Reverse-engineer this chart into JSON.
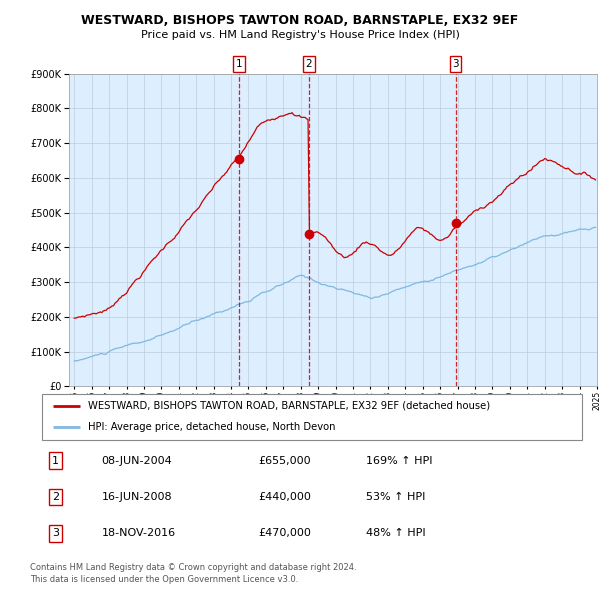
{
  "title": "WESTWARD, BISHOPS TAWTON ROAD, BARNSTAPLE, EX32 9EF",
  "subtitle": "Price paid vs. HM Land Registry's House Price Index (HPI)",
  "legend_line1": "WESTWARD, BISHOPS TAWTON ROAD, BARNSTAPLE, EX32 9EF (detached house)",
  "legend_line2": "HPI: Average price, detached house, North Devon",
  "transactions": [
    {
      "num": 1,
      "date": "08-JUN-2004",
      "price": 655000,
      "pct": "169%",
      "dir": "↑"
    },
    {
      "num": 2,
      "date": "16-JUN-2008",
      "price": 440000,
      "pct": "53%",
      "dir": "↑"
    },
    {
      "num": 3,
      "date": "18-NOV-2016",
      "price": 470000,
      "pct": "48%",
      "dir": "↑"
    }
  ],
  "footnote1": "Contains HM Land Registry data © Crown copyright and database right 2024.",
  "footnote2": "This data is licensed under the Open Government Licence v3.0.",
  "sale_years": [
    2004.44,
    2008.46,
    2016.88
  ],
  "sale_prices": [
    655000,
    440000,
    470000
  ],
  "hpi_color": "#7fb8e0",
  "price_color": "#cc0000",
  "background_color": "#ddeeff",
  "plot_bg": "#ffffff",
  "vline_color": "#cc0000",
  "ylim": [
    0,
    900000
  ],
  "yticks": [
    0,
    100000,
    200000,
    300000,
    400000,
    500000,
    600000,
    700000,
    800000,
    900000
  ],
  "start_year": 1995,
  "end_year": 2025
}
